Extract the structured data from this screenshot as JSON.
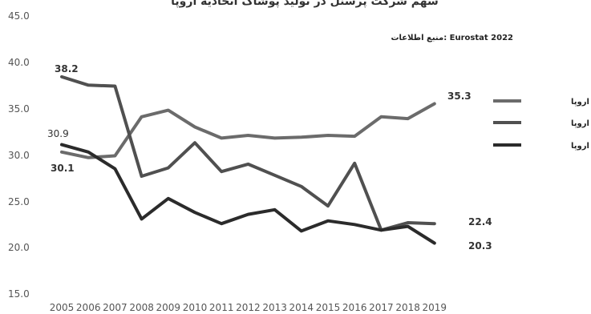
{
  "chart_data": {
    "type": "line",
    "title": "سهم شرکت پرسنل در تولید پوشاک اتحادیه اروپا",
    "source": "منبع اطلاعات: Eurostat 2022",
    "x": [
      "2005",
      "2006",
      "2007",
      "2008",
      "2009",
      "2010",
      "2011",
      "2012",
      "2013",
      "2014",
      "2015",
      "2016",
      "2017",
      "2018",
      "2019"
    ],
    "ylim": [
      15.0,
      45.0
    ],
    "yticks": [
      "15.0",
      "20.0",
      "25.0",
      "30.0",
      "35.0",
      "40.0",
      "45.0"
    ],
    "grid": false,
    "legend_position": "right",
    "series": [
      {
        "name": "شرق اتحادیه اروپا",
        "color": "#6b6b6b",
        "values": [
          30.1,
          29.5,
          29.7,
          33.9,
          34.6,
          32.8,
          31.6,
          31.9,
          31.6,
          31.7,
          31.9,
          31.8,
          33.9,
          33.7,
          35.3
        ]
      },
      {
        "name": "جنوب اتحادیه اروپا",
        "color": "#505050",
        "values": [
          38.2,
          37.3,
          37.2,
          27.5,
          28.4,
          31.1,
          28.0,
          28.8,
          27.6,
          26.4,
          24.3,
          28.9,
          21.7,
          22.5,
          22.4
        ]
      },
      {
        "name": "غرب اتحادیه اروپا",
        "color": "#2b2b2b",
        "values": [
          30.9,
          30.1,
          28.3,
          22.9,
          25.1,
          23.6,
          22.4,
          23.4,
          23.9,
          21.6,
          22.7,
          22.3,
          21.7,
          22.1,
          20.3
        ]
      }
    ],
    "data_labels": [
      "38.2",
      "30.9",
      "30.1",
      "35.3",
      "22.4",
      "20.3"
    ]
  }
}
